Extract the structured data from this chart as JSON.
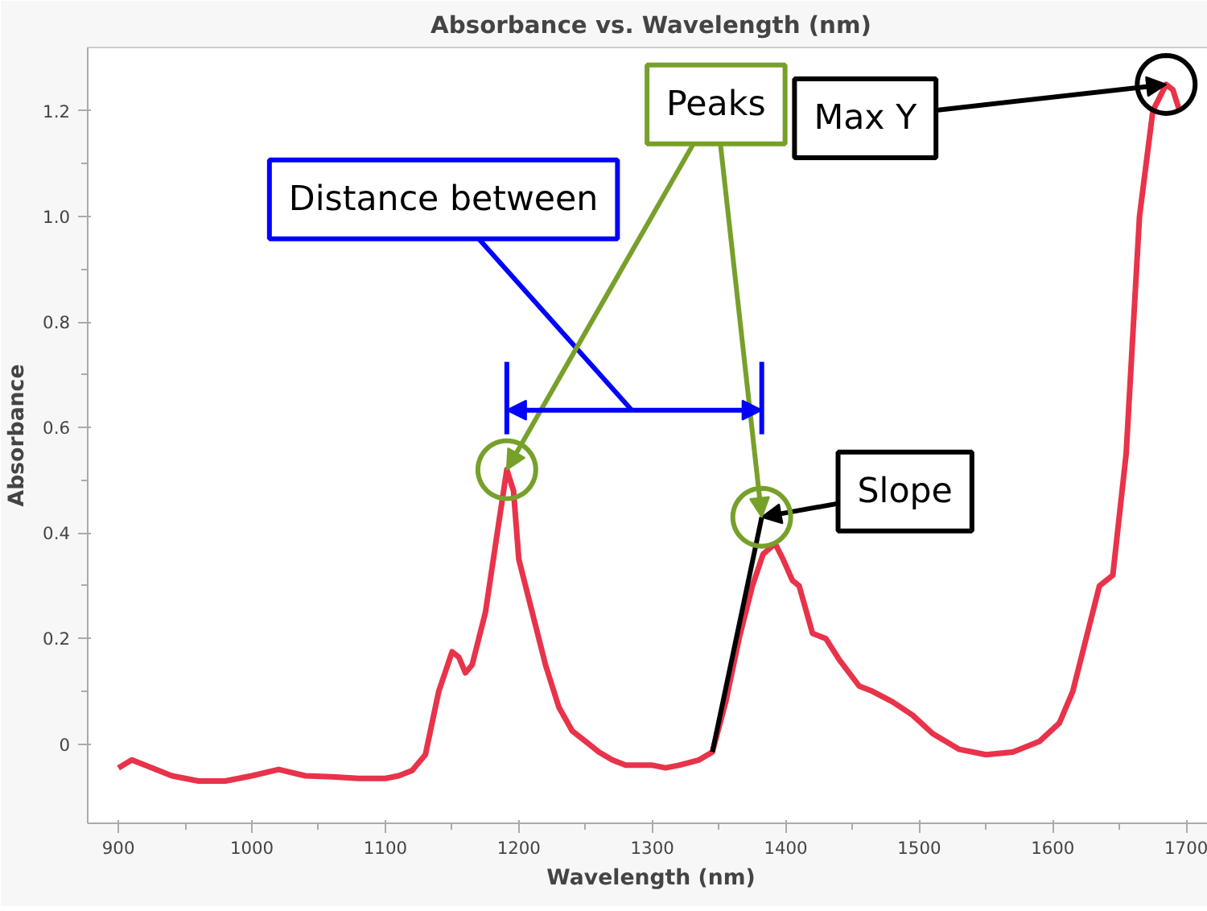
{
  "chart_data": {
    "type": "line",
    "title": "Absorbance vs. Wavelength (nm)",
    "xlabel": "Wavelength (nm)",
    "ylabel": "Absorbance",
    "xlim": [
      877,
      1721
    ],
    "ylim": [
      -0.15,
      1.32
    ],
    "xticks": [
      900,
      1000,
      1100,
      1200,
      1300,
      1400,
      1500,
      1600,
      1700
    ],
    "yticks": [
      {
        "value": 0,
        "label": "0"
      },
      0.2,
      0.4,
      0.6,
      0.8,
      {
        "value": 1.0,
        "label": "1.0"
      },
      1.2
    ],
    "grid": false,
    "marker": "none",
    "line_style": "solid",
    "series": [
      {
        "color": "#e8334a",
        "x": [
          900,
          910,
          920,
          940,
          960,
          980,
          1000,
          1020,
          1040,
          1060,
          1080,
          1100,
          1110,
          1120,
          1130,
          1140,
          1150,
          1155,
          1160,
          1165,
          1175,
          1185,
          1191,
          1196,
          1200,
          1210,
          1220,
          1230,
          1240,
          1250,
          1260,
          1270,
          1280,
          1300,
          1310,
          1320,
          1335,
          1345,
          1355,
          1365,
          1375,
          1383,
          1392,
          1398,
          1405,
          1410,
          1420,
          1430,
          1440,
          1455,
          1465,
          1480,
          1495,
          1510,
          1530,
          1550,
          1570,
          1590,
          1605,
          1615,
          1625,
          1635,
          1645,
          1655,
          1665,
          1675,
          1685,
          1690,
          1695
        ],
        "values": [
          -0.045,
          -0.03,
          -0.04,
          -0.06,
          -0.07,
          -0.07,
          -0.06,
          -0.048,
          -0.06,
          -0.062,
          -0.065,
          -0.065,
          -0.06,
          -0.05,
          -0.02,
          0.1,
          0.175,
          0.165,
          0.135,
          0.15,
          0.25,
          0.42,
          0.52,
          0.48,
          0.35,
          0.25,
          0.15,
          0.07,
          0.025,
          0.005,
          -0.015,
          -0.03,
          -0.04,
          -0.04,
          -0.045,
          -0.04,
          -0.03,
          -0.015,
          0.08,
          0.2,
          0.3,
          0.36,
          0.38,
          0.35,
          0.31,
          0.3,
          0.21,
          0.2,
          0.16,
          0.11,
          0.1,
          0.08,
          0.055,
          0.02,
          -0.01,
          -0.02,
          -0.015,
          0.005,
          0.04,
          0.1,
          0.2,
          0.3,
          0.32,
          0.55,
          1.0,
          1.2,
          1.25,
          1.24,
          1.2
        ]
      },
      {
        "type": "line",
        "color": "#000000",
        "x": [
          1345,
          1382
        ],
        "values": [
          -0.015,
          0.43
        ]
      }
    ],
    "ref_lines": [
      {
        "axis": "x",
        "value": 1191,
        "color": "#0000ff"
      },
      {
        "axis": "x",
        "value": 1382,
        "color": "#0000ff"
      }
    ],
    "annotations": [
      "Distance between",
      {
        "text": "Peaks",
        "x": 1191,
        "y": 0.52
      },
      {
        "text": "Max Y",
        "x": 1685,
        "y": 1.25
      },
      {
        "text": "Slope",
        "x": 1382,
        "y": 0.43
      }
    ]
  }
}
